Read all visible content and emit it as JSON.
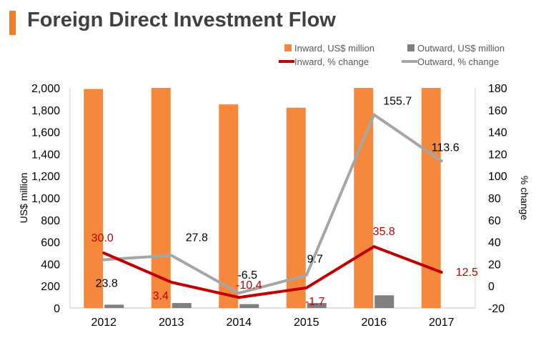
{
  "title": "Foreign Direct Investment Flow",
  "colors": {
    "inward_bar": "#f5883a",
    "outward_bar": "#7f7f7f",
    "inward_line": "#c00000",
    "outward_line": "#a6a6a6",
    "title_accent": "#f07f23"
  },
  "chart_data": {
    "type": "bar",
    "title": "Foreign Direct Investment Flow",
    "categories": [
      "2012",
      "2013",
      "2014",
      "2015",
      "2016",
      "2017"
    ],
    "ylabel": "US$ million",
    "y2label": "% change",
    "ylim": [
      0,
      2000
    ],
    "y2lim": [
      -20,
      180
    ],
    "yticks": [
      "0",
      "200",
      "400",
      "600",
      "800",
      "1,000",
      "1,200",
      "1,400",
      "1,600",
      "1,800",
      "2,000"
    ],
    "y2ticks": [
      "-20",
      "0",
      "20",
      "40",
      "60",
      "80",
      "100",
      "120",
      "140",
      "160",
      "180"
    ],
    "legend_position": "top-right",
    "grid": false,
    "series": [
      {
        "name": "Inward, US$ million",
        "kind": "bar",
        "axis": "left",
        "values": [
          1990,
          2000,
          1850,
          1820,
          2000,
          2000
        ]
      },
      {
        "name": "Outward, US$ million",
        "kind": "bar",
        "axis": "left",
        "values": [
          30,
          45,
          35,
          45,
          115,
          0
        ]
      },
      {
        "name": "Inward, % change",
        "kind": "line",
        "axis": "right",
        "values": [
          30.0,
          3.4,
          -10.4,
          -1.7,
          35.8,
          12.5
        ],
        "labels": [
          "30.0",
          "3.4",
          "-10.4",
          "-1.7",
          "35.8",
          "12.5"
        ]
      },
      {
        "name": "Outward, % change",
        "kind": "line",
        "axis": "right",
        "values": [
          23.8,
          27.8,
          -6.5,
          9.7,
          155.7,
          113.6
        ],
        "labels": [
          "23.8",
          "27.8",
          "-6.5",
          "9.7",
          "155.7",
          "113.6"
        ]
      }
    ]
  }
}
